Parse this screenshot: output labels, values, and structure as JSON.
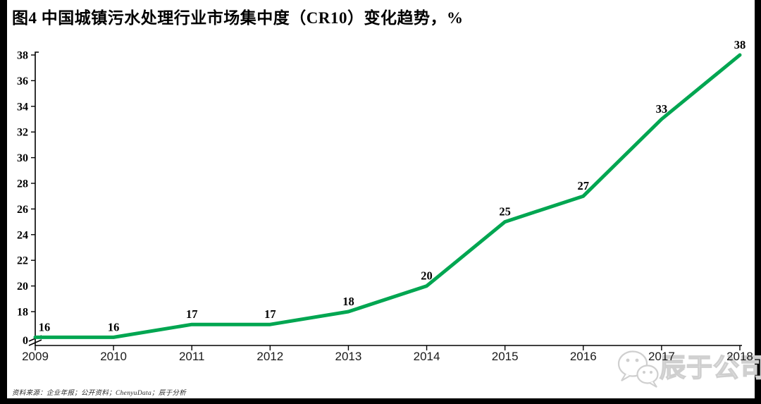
{
  "title": "图4 中国城镇污水处理行业市场集中度（CR10）变化趋势，%",
  "footer": {
    "source_note": "资料来源：企业年报；公开资料；ChenyuData；辰于分析"
  },
  "watermark": {
    "label": "辰于公司",
    "icon": "wechat-icon"
  },
  "chart_data": {
    "type": "line",
    "title": "中国城镇污水处理行业市场集中度（CR10）变化趋势",
    "unit": "%",
    "categories": [
      "2009",
      "2010",
      "2011",
      "2012",
      "2013",
      "2014",
      "2015",
      "2016",
      "2017",
      "2018"
    ],
    "values": [
      16,
      16,
      17,
      17,
      18,
      20,
      25,
      27,
      33,
      38
    ],
    "data_labels": [
      "16",
      "16",
      "17",
      "17",
      "18",
      "20",
      "25",
      "27",
      "33",
      "38"
    ],
    "y_ticks": [
      0,
      18,
      20,
      22,
      24,
      26,
      28,
      30,
      32,
      34,
      36,
      38
    ],
    "ylim": [
      0,
      38
    ],
    "axis_break": true,
    "axis_break_between": [
      0,
      16
    ],
    "grid": false,
    "legend": false,
    "line_color": "#00A651",
    "axis_color": "#000000",
    "label_color": "#000000"
  }
}
